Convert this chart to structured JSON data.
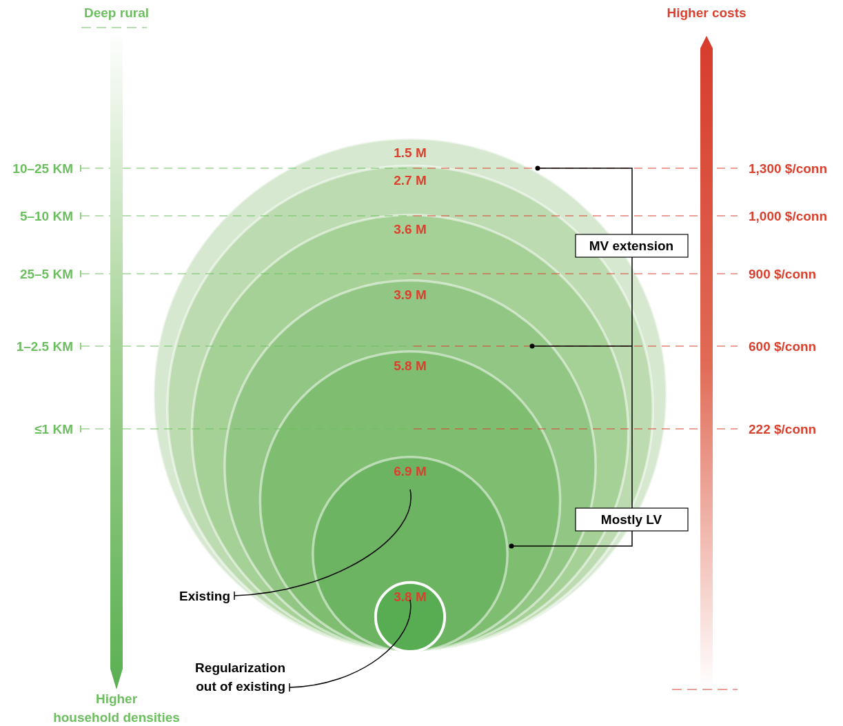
{
  "chart_data": {
    "type": "other",
    "categories": [
      null,
      null,
      null,
      null,
      null,
      "Existing",
      "Regularization\nout of existing"
    ],
    "values": [
      1.5,
      2.7,
      3.6,
      3.9,
      5.8,
      6.9,
      3.8
    ],
    "value_labels": [
      "1.5 M",
      "2.7 M",
      "3.6 M",
      "3.9 M",
      "5.8 M",
      "6.9 M",
      "3.8 M"
    ],
    "colors": [
      "#d6e8d0",
      "#bddbb0",
      "#a5d096",
      "#91c684",
      "#7fbd71",
      "#6cb462",
      "#58ad52"
    ],
    "annotations": [
      "Deep rural",
      "Higher\nhousehold densities",
      "Higher costs",
      "MV extension",
      "Mostly LV",
      "1,300 $/conn",
      "1,000 $/conn",
      "900 $/conn",
      "600 $/conn",
      "222 $/conn",
      "10–25 KM",
      "5–10 KM",
      "25–5 KM",
      "1–2.5 KM",
      "≤1 KM"
    ]
  }
}
